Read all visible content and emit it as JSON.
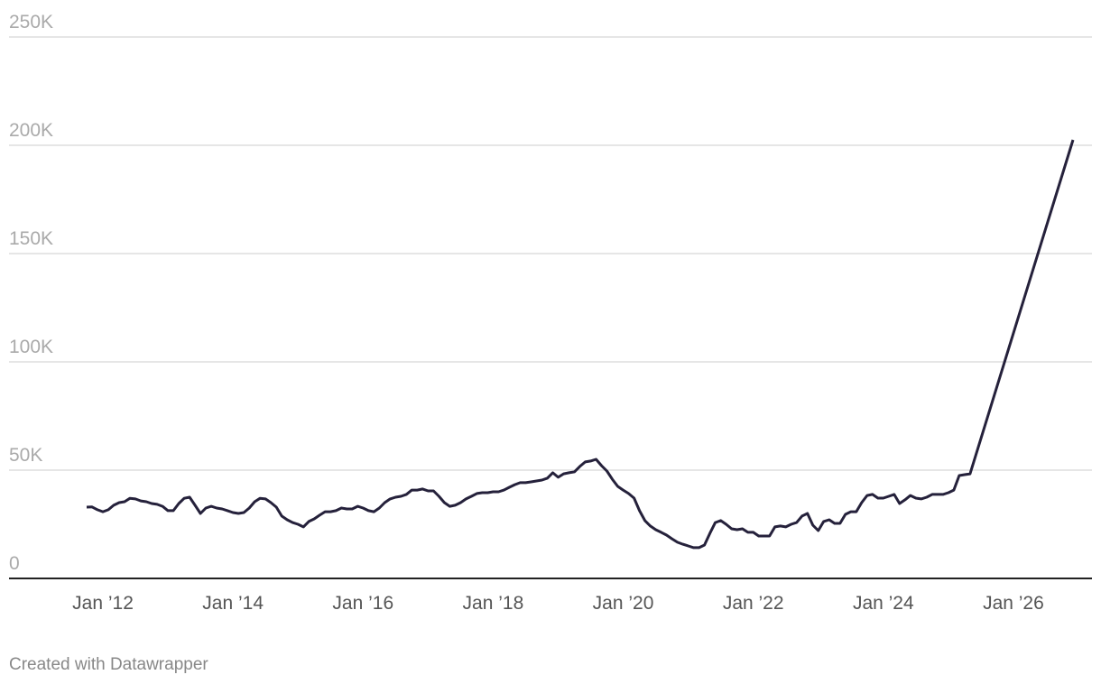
{
  "chart_data": {
    "type": "line",
    "footer": "Created with Datawrapper",
    "x": [
      "2011-10",
      "2011-11",
      "2011-12",
      "2012-01",
      "2012-02",
      "2012-03",
      "2012-04",
      "2012-05",
      "2012-06",
      "2012-07",
      "2012-08",
      "2012-09",
      "2012-10",
      "2012-11",
      "2012-12",
      "2013-01",
      "2013-02",
      "2013-03",
      "2013-04",
      "2013-05",
      "2013-06",
      "2013-07",
      "2013-08",
      "2013-09",
      "2013-10",
      "2013-11",
      "2013-12",
      "2014-01",
      "2014-02",
      "2014-03",
      "2014-04",
      "2014-05",
      "2014-06",
      "2014-07",
      "2014-08",
      "2014-09",
      "2014-10",
      "2014-11",
      "2014-12",
      "2015-01",
      "2015-02",
      "2015-03",
      "2015-04",
      "2015-05",
      "2015-06",
      "2015-07",
      "2015-08",
      "2015-09",
      "2015-10",
      "2015-11",
      "2015-12",
      "2016-01",
      "2016-02",
      "2016-03",
      "2016-04",
      "2016-05",
      "2016-06",
      "2016-07",
      "2016-08",
      "2016-09",
      "2016-10",
      "2016-11",
      "2016-12",
      "2017-01",
      "2017-02",
      "2017-03",
      "2017-04",
      "2017-05",
      "2017-06",
      "2017-07",
      "2017-08",
      "2017-09",
      "2017-10",
      "2017-11",
      "2017-12",
      "2018-01",
      "2018-02",
      "2018-03",
      "2018-04",
      "2018-05",
      "2018-06",
      "2018-07",
      "2018-08",
      "2018-09",
      "2018-10",
      "2018-11",
      "2018-12",
      "2019-01",
      "2019-02",
      "2019-03",
      "2019-04",
      "2019-05",
      "2019-06",
      "2019-07",
      "2019-08",
      "2019-09",
      "2019-10",
      "2019-11",
      "2019-12",
      "2020-01",
      "2020-02",
      "2020-03",
      "2020-04",
      "2020-05",
      "2020-06",
      "2020-07",
      "2020-08",
      "2020-09",
      "2020-10",
      "2020-11",
      "2020-12",
      "2021-01",
      "2021-02",
      "2021-03",
      "2021-04",
      "2021-05",
      "2021-06",
      "2021-07",
      "2021-08",
      "2021-09",
      "2021-10",
      "2021-11",
      "2021-12",
      "2022-01",
      "2022-02",
      "2022-03",
      "2022-04",
      "2022-05",
      "2022-06",
      "2022-07",
      "2022-08",
      "2022-09",
      "2022-10",
      "2022-11",
      "2022-12",
      "2023-01",
      "2023-02",
      "2023-03",
      "2023-04",
      "2023-05",
      "2023-06",
      "2023-07",
      "2023-08",
      "2023-09",
      "2023-10",
      "2023-11",
      "2023-12",
      "2024-01",
      "2024-02",
      "2024-03",
      "2024-04",
      "2024-05",
      "2024-06",
      "2024-07",
      "2024-08",
      "2024-09",
      "2024-10",
      "2024-11",
      "2024-12",
      "2025-01",
      "2025-02",
      "2025-03",
      "2025-04",
      "2025-05",
      "2026-12"
    ],
    "series": [
      {
        "color": "#25213b",
        "values": [
          32900,
          33000,
          31700,
          30800,
          31700,
          33800,
          35000,
          35400,
          37000,
          36700,
          35800,
          35400,
          34600,
          34200,
          33300,
          31300,
          31300,
          34600,
          37000,
          37500,
          33800,
          30000,
          32500,
          33300,
          32500,
          32100,
          31300,
          30400,
          30000,
          30400,
          32500,
          35400,
          37000,
          36700,
          35000,
          32900,
          28800,
          27100,
          25800,
          25000,
          23800,
          26300,
          27500,
          29200,
          30800,
          30800,
          31300,
          32500,
          32100,
          32100,
          33300,
          32500,
          31300,
          30800,
          32500,
          35000,
          36700,
          37500,
          37900,
          38800,
          40800,
          40800,
          41300,
          40400,
          40400,
          37900,
          35000,
          33300,
          33800,
          35000,
          36700,
          37900,
          39200,
          39600,
          39600,
          40000,
          40000,
          40800,
          42100,
          43300,
          44200,
          44200,
          44600,
          45000,
          45400,
          46300,
          48800,
          46700,
          48300,
          48800,
          49200,
          51700,
          53800,
          54200,
          55000,
          52100,
          49600,
          45800,
          42500,
          40800,
          39200,
          37100,
          31300,
          26700,
          24200,
          22500,
          21300,
          20000,
          18300,
          16700,
          15800,
          15000,
          14200,
          14200,
          15400,
          20800,
          25800,
          26700,
          25000,
          22900,
          22500,
          22900,
          21300,
          21300,
          19600,
          19600,
          19600,
          23800,
          24200,
          23800,
          25000,
          25800,
          28800,
          30000,
          24600,
          22100,
          26300,
          27100,
          25400,
          25400,
          29600,
          30800,
          30800,
          35000,
          38300,
          38800,
          37100,
          37100,
          37900,
          38800,
          34600,
          36300,
          38300,
          37100,
          36700,
          37500,
          38800,
          38800,
          38800,
          39600,
          40800,
          47500,
          47900,
          48300,
          202500
        ]
      }
    ],
    "xticks": [
      {
        "value": "2012-01",
        "label": "Jan ’12"
      },
      {
        "value": "2014-01",
        "label": "Jan ’14"
      },
      {
        "value": "2016-01",
        "label": "Jan ’16"
      },
      {
        "value": "2018-01",
        "label": "Jan ’18"
      },
      {
        "value": "2020-01",
        "label": "Jan ’20"
      },
      {
        "value": "2022-01",
        "label": "Jan ’22"
      },
      {
        "value": "2024-01",
        "label": "Jan ’24"
      },
      {
        "value": "2026-01",
        "label": "Jan ’26"
      }
    ],
    "ylim": [
      0,
      250000
    ],
    "yticks": [
      0,
      {
        "value": 50000,
        "label": "50K"
      },
      {
        "value": 100000,
        "label": "100K"
      },
      {
        "value": 150000,
        "label": "150K"
      },
      {
        "value": 200000,
        "label": "200K"
      },
      {
        "value": 250000,
        "label": "250K"
      }
    ],
    "grid": true
  }
}
